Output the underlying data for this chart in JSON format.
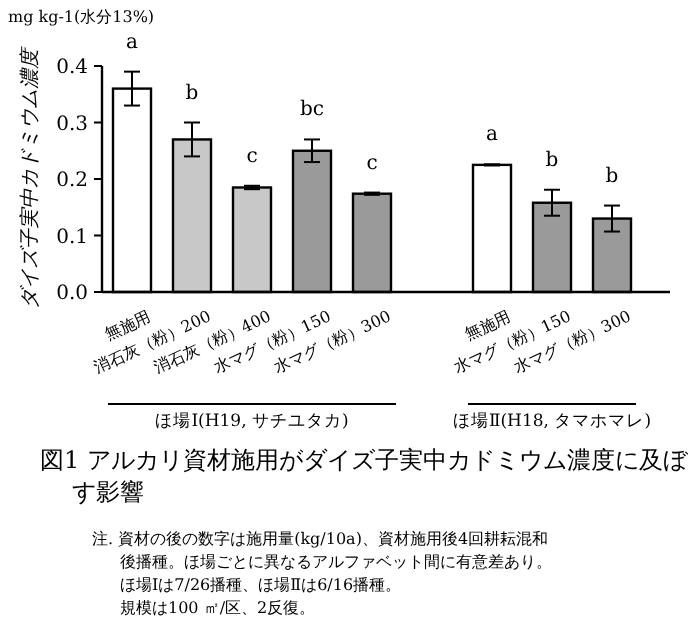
{
  "chart_data": {
    "type": "bar",
    "title": "図1 アルカリ資材施用がダイズ子実中カドミウム濃度に及ぼす影響",
    "ylabel": "ダイズ子実中カドミウム濃度",
    "categories": [
      "無施用",
      "消石灰（粉）200",
      "消石灰（粉）400",
      "水マグ（粉）150",
      "水マグ（粉）300",
      null,
      "無施用",
      "水マグ（粉）150",
      "水マグ（粉）300"
    ],
    "values": [
      0.36,
      0.27,
      0.185,
      0.25,
      0.174,
      null,
      0.225,
      0.158,
      0.13
    ],
    "errors": [
      0.03,
      0.03,
      0.003,
      0.02,
      0.002,
      null,
      0.001,
      0.023,
      0.023
    ],
    "colors": [
      "#ffffff",
      "#c8c8c8",
      "#c8c8c8",
      "#9a9a9a",
      "#9a9a9a",
      null,
      "#ffffff",
      "#9a9a9a",
      "#9a9a9a"
    ],
    "ylim": [
      0,
      0.4
    ],
    "yticks": [
      {
        "value": 0,
        "label": "0.0"
      },
      {
        "value": 0.1,
        "label": "0.1"
      },
      {
        "value": 0.2,
        "label": "0.2"
      },
      {
        "value": 0.3,
        "label": "0.3"
      },
      {
        "value": 0.4,
        "label": "0.4"
      }
    ],
    "grid": false,
    "annotations": [
      "mg kg-1(水分13%)",
      "a",
      "b",
      "c",
      "bc",
      "c",
      "a",
      "b",
      "b",
      "ほ場Ⅰ(H19, サチユタカ)",
      "ほ場Ⅱ(H18, タマホマレ)",
      "注. 資材の後の数字は施用量(kg/10a)、資材施用後4回耕耘混和",
      "後播種。ほ場ごとに異なるアルファベット間に有意差あり。",
      "ほ場Ⅰは7/26播種、ほ場Ⅱは6/16播種。",
      "規模は100 ㎡/区、2反復。"
    ]
  }
}
